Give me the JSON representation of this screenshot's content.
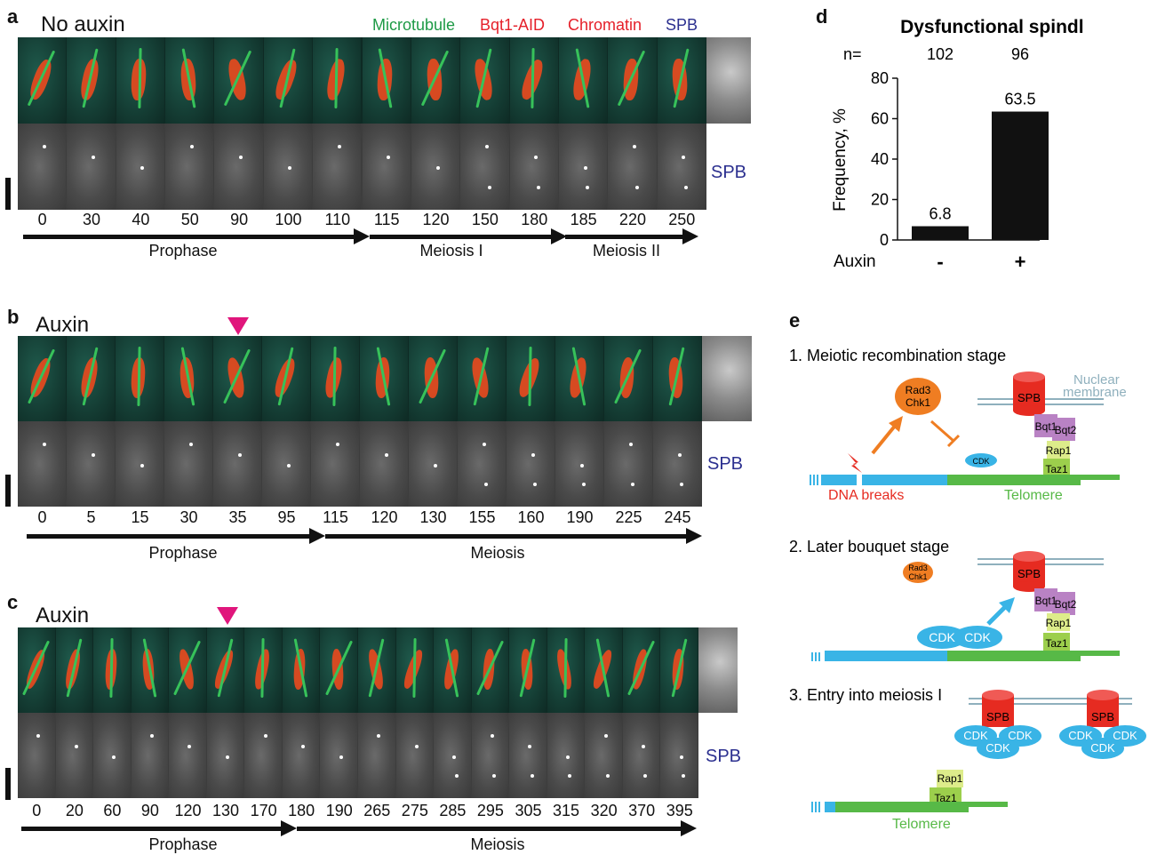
{
  "panel_a": {
    "label": "a",
    "condition": "No auxin",
    "legend": {
      "microtubule": "Microtubule",
      "bqt1": "Bqt1-AID",
      "chromatin": "Chromatin",
      "spb": "SPB"
    },
    "spb_label": "SPB",
    "times": [
      "0",
      "30",
      "40",
      "50",
      "90",
      "100",
      "110",
      "115",
      "120",
      "150",
      "180",
      "185",
      "220",
      "250"
    ],
    "phases": [
      "Prophase",
      "Meiosis I",
      "Meiosis II"
    ]
  },
  "panel_b": {
    "label": "b",
    "condition": "Auxin",
    "spb_label": "SPB",
    "times": [
      "0",
      "5",
      "15",
      "30",
      "35",
      "95",
      "115",
      "120",
      "130",
      "155",
      "160",
      "190",
      "225",
      "245"
    ],
    "phases": [
      "Prophase",
      "Meiosis"
    ]
  },
  "panel_c": {
    "label": "c",
    "condition": "Auxin",
    "spb_label": "SPB",
    "times": [
      "0",
      "20",
      "60",
      "90",
      "120",
      "130",
      "170",
      "180",
      "190",
      "265",
      "275",
      "285",
      "295",
      "305",
      "315",
      "320",
      "370",
      "395"
    ],
    "phases": [
      "Prophase",
      "Meiosis"
    ]
  },
  "panel_d": {
    "label": "d",
    "n_prefix": "n=",
    "auxin_label": "Auxin"
  },
  "chart_data": {
    "type": "bar",
    "title": "Dysfunctional spindles",
    "categories": [
      "-",
      "+"
    ],
    "values": [
      6.8,
      63.5
    ],
    "n": [
      "102",
      "96"
    ],
    "xlabel": "Auxin",
    "ylabel": "Frequency, %",
    "ylim": [
      0,
      80
    ],
    "yticks": [
      0,
      20,
      40,
      60,
      80
    ],
    "bar_color": "#111111"
  },
  "panel_e": {
    "label": "e",
    "stage1": "1. Meiotic recombination stage",
    "stage2": "2. Later bouquet stage",
    "stage3": "3. Entry into meiosis I",
    "nuclear1": "Nuclear",
    "nuclear2": "membrane",
    "rad3": "Rad3",
    "chk1": "Chk1",
    "spb": "SPB",
    "bqt1": "Bqt1",
    "bqt2": "Bqt2",
    "rap1": "Rap1",
    "taz1": "Taz1",
    "cdk": "CDK",
    "dna_breaks": "DNA breaks",
    "telomere": "Telomere"
  }
}
